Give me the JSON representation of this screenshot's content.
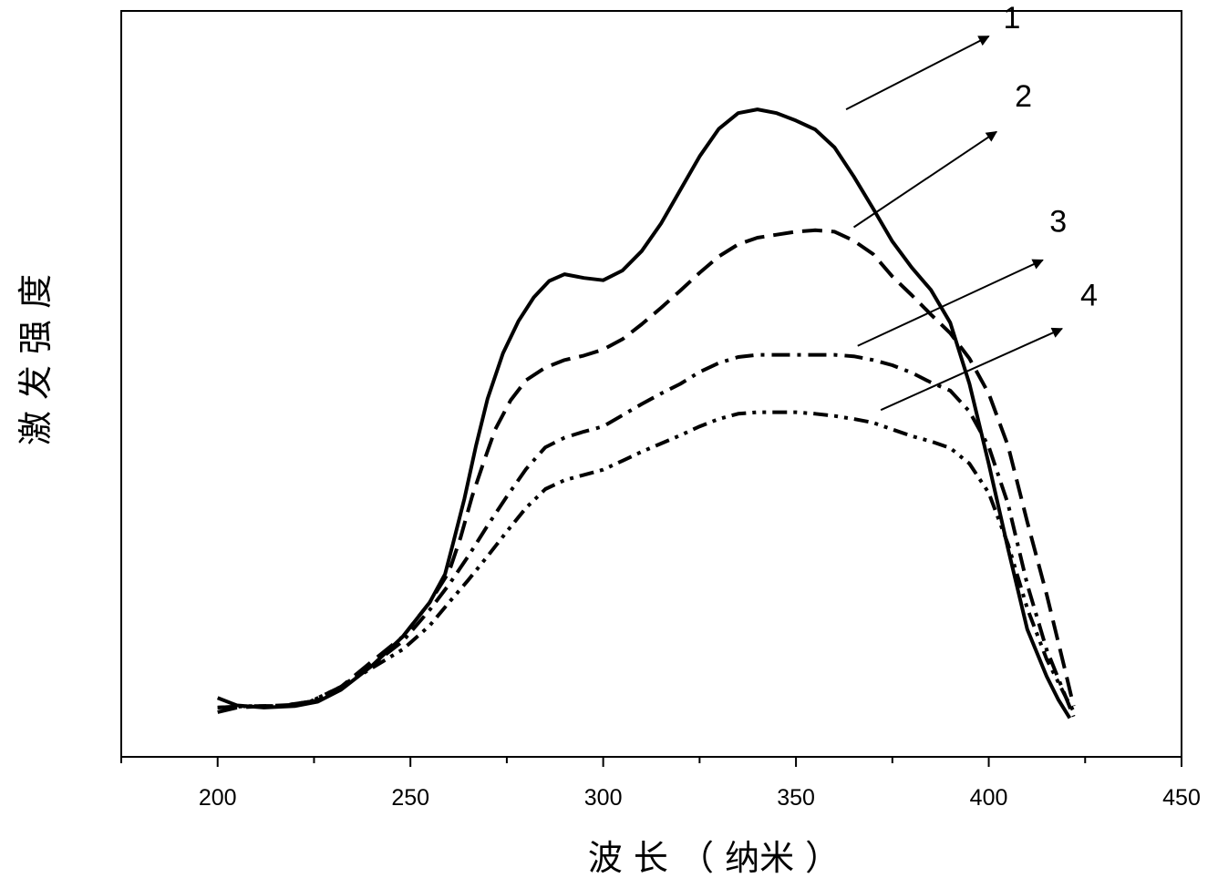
{
  "chart_data": {
    "type": "line",
    "xlabel": "波 长 （ 纳米 ）",
    "ylabel": "激 发 强 度",
    "xlim": [
      175,
      450
    ],
    "ylim": [
      0,
      100
    ],
    "x_ticks": [
      "200",
      "250",
      "300",
      "350",
      "400",
      "450"
    ],
    "y_ticks_labeled": false,
    "grid": false,
    "legend": "none",
    "series": [
      {
        "name": "1",
        "style": "solid",
        "x": [
          200,
          205,
          212,
          220,
          226,
          232,
          240,
          248,
          255,
          259,
          261,
          264,
          267,
          270,
          274,
          278,
          282,
          286,
          290,
          295,
          300,
          305,
          310,
          315,
          320,
          325,
          330,
          335,
          340,
          345,
          350,
          355,
          360,
          365,
          370,
          375,
          380,
          385,
          390,
          395,
          400,
          405,
          410,
          415,
          418,
          421
        ],
        "y": [
          7.9,
          6.9,
          6.6,
          6.8,
          7.4,
          9.0,
          12.2,
          16.1,
          20.7,
          24.5,
          28.5,
          34.6,
          41.7,
          48.0,
          54.1,
          58.4,
          61.6,
          63.8,
          64.7,
          64.2,
          63.9,
          65.2,
          67.8,
          71.5,
          76.0,
          80.5,
          84.2,
          86.3,
          86.8,
          86.3,
          85.3,
          84.1,
          81.7,
          77.8,
          73.5,
          69.1,
          65.6,
          62.6,
          58.2,
          50.0,
          39.3,
          27.9,
          17.1,
          10.8,
          7.7,
          5.2
        ]
      },
      {
        "name": "2",
        "style": "dashed",
        "x": [
          200,
          205,
          212,
          220,
          226,
          232,
          240,
          248,
          255,
          260,
          263,
          266,
          269,
          272,
          276,
          280,
          285,
          290,
          295,
          300,
          305,
          310,
          315,
          320,
          325,
          330,
          335,
          340,
          345,
          350,
          355,
          360,
          365,
          370,
          375,
          380,
          385,
          390,
          395,
          400,
          405,
          410,
          415,
          420,
          422
        ],
        "y": [
          6.0,
          6.6,
          6.8,
          7.0,
          7.6,
          9.4,
          12.8,
          16.1,
          20.7,
          24.8,
          29.4,
          34.9,
          39.5,
          43.9,
          47.8,
          50.5,
          52.2,
          53.2,
          53.8,
          54.6,
          56.0,
          58.0,
          60.2,
          62.5,
          64.9,
          67.1,
          68.7,
          69.6,
          70.0,
          70.4,
          70.6,
          70.4,
          69.2,
          67.4,
          64.4,
          61.9,
          59.3,
          56.8,
          53.4,
          48.7,
          41.7,
          31.5,
          21.8,
          11.2,
          6.8
        ]
      },
      {
        "name": "3",
        "style": "dash-dot",
        "x": [
          200,
          208,
          216,
          224,
          232,
          240,
          248,
          255,
          260,
          265,
          270,
          275,
          280,
          285,
          290,
          295,
          300,
          305,
          310,
          315,
          320,
          325,
          330,
          335,
          340,
          345,
          350,
          355,
          360,
          365,
          370,
          375,
          380,
          385,
          390,
          395,
          400,
          405,
          410,
          415,
          420,
          422
        ],
        "y": [
          6.6,
          6.8,
          6.8,
          7.4,
          9.4,
          12.3,
          15.5,
          19.7,
          23.1,
          26.9,
          31.0,
          34.9,
          38.6,
          41.5,
          42.8,
          43.6,
          44.3,
          45.8,
          47.3,
          48.7,
          50.0,
          51.6,
          52.8,
          53.6,
          53.9,
          53.9,
          53.9,
          53.9,
          53.9,
          53.7,
          53.2,
          52.5,
          51.5,
          50.2,
          49.1,
          46.3,
          41.6,
          33.9,
          23.1,
          14.4,
          8.0,
          5.4
        ]
      },
      {
        "name": "4",
        "style": "dash-dot-dot",
        "x": [
          200,
          208,
          216,
          224,
          232,
          240,
          248,
          255,
          260,
          265,
          270,
          275,
          280,
          285,
          290,
          295,
          300,
          305,
          310,
          315,
          320,
          325,
          330,
          335,
          340,
          345,
          350,
          355,
          360,
          365,
          370,
          375,
          380,
          385,
          390,
          395,
          400,
          405,
          410,
          415,
          420,
          422
        ],
        "y": [
          6.6,
          6.8,
          6.8,
          7.4,
          9.4,
          11.9,
          14.4,
          17.6,
          20.7,
          23.7,
          26.9,
          30.2,
          33.4,
          35.9,
          37.1,
          37.8,
          38.5,
          39.7,
          40.9,
          42.0,
          43.1,
          44.3,
          45.3,
          46.0,
          46.2,
          46.2,
          46.2,
          46.0,
          45.7,
          45.3,
          44.8,
          43.9,
          43.0,
          42.3,
          41.4,
          39.3,
          35.4,
          28.5,
          19.9,
          13.1,
          8.0,
          6.1
        ]
      }
    ],
    "annotations": [
      {
        "label": "1",
        "from": [
          363,
          86.8
        ],
        "to": [
          400,
          96.6
        ],
        "text_at": [
          406,
          97.7
        ]
      },
      {
        "label": "2",
        "from": [
          365,
          71.0
        ],
        "to": [
          402,
          83.8
        ],
        "text_at": [
          409,
          87.2
        ]
      },
      {
        "label": "3",
        "from": [
          366,
          55.1
        ],
        "to": [
          414,
          66.6
        ],
        "text_at": [
          418,
          70.4
        ]
      },
      {
        "label": "4",
        "from": [
          372,
          46.5
        ],
        "to": [
          419,
          57.4
        ],
        "text_at": [
          426,
          60.5
        ]
      }
    ]
  }
}
